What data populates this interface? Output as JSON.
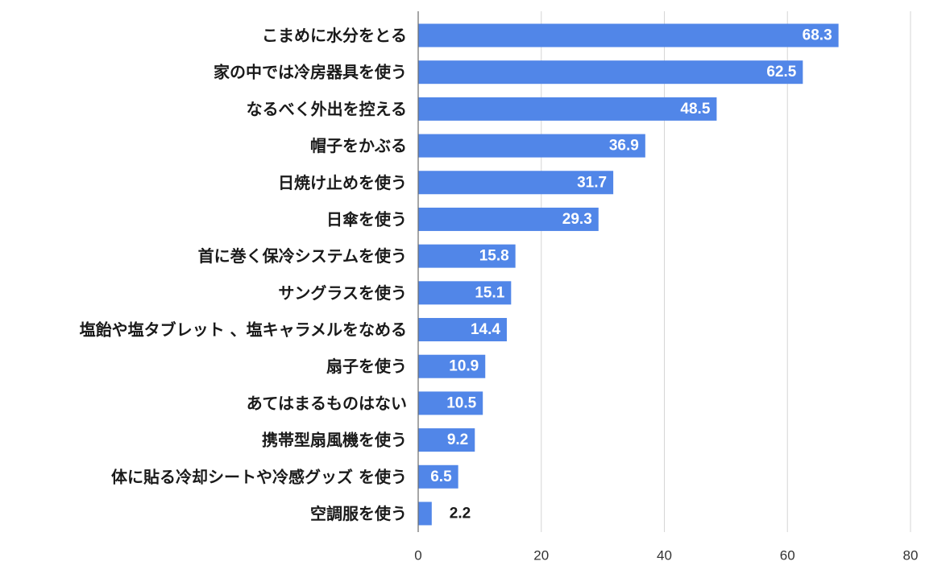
{
  "chart_data": {
    "type": "bar",
    "orientation": "horizontal",
    "categories": [
      "こまめに水分をとる",
      "家の中では冷房器具を使う",
      "なるべく外出を控える",
      "帽子をかぶる",
      "日焼け止めを使う",
      "日傘を使う",
      "首に巻く保冷システムを使う",
      "サングラスを使う",
      "塩飴や塩タブレット 、塩キャラメルをなめる",
      "扇子を使う",
      "あてはまるものはない",
      "携帯型扇風機を使う",
      "体に貼る冷却シートや冷感グッズ を使う",
      "空調服を使う"
    ],
    "values": [
      68.3,
      62.5,
      48.5,
      36.9,
      31.7,
      29.3,
      15.8,
      15.1,
      14.4,
      10.9,
      10.5,
      9.2,
      6.5,
      2.2
    ],
    "xlim": [
      0,
      80
    ],
    "xticks": [
      0,
      20,
      40,
      60,
      80
    ],
    "grid": true,
    "legend": "none",
    "data_labels": true
  },
  "colors": {
    "bar": "#5186e8",
    "label_inside": "#ffffff",
    "label_outside": "#1a1a1a",
    "grid": "#d6d6d6",
    "axis": "#6b6b6b"
  }
}
